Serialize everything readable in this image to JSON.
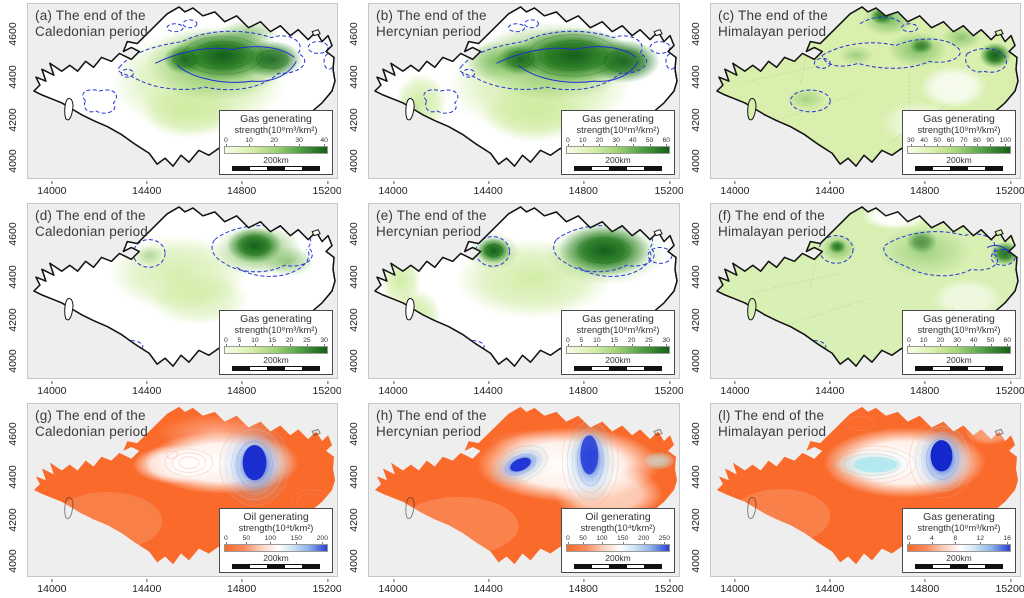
{
  "axes": {
    "x": [
      "14000",
      "14400",
      "14800",
      "15200"
    ],
    "y": [
      "4600",
      "4400",
      "4200",
      "4000"
    ]
  },
  "scale_label": "200km",
  "colors": {
    "plot_background": "#efeeee",
    "basin_fill_white": "#ffffff",
    "basin_fill_green": "#d9efae",
    "basin_fill_orange": "#f96a2b",
    "gas_scale_dark": "#145f18",
    "oil_scale_blue": "#2a3fd4",
    "contour_blue": "#2433d9",
    "outline_black": "#141414"
  },
  "panels": [
    {
      "label": "(a)",
      "title_line1": "(a) The end of the",
      "title_line2": "Caledonian period",
      "legend_title": "Gas generating",
      "legend_unit": "strength(10⁸m³/km²)",
      "ticks": [
        "0",
        "10",
        "20",
        "30",
        "40"
      ],
      "colormap": "green"
    },
    {
      "label": "(b)",
      "title_line1": "(b) The end of the",
      "title_line2": "Hercynian period",
      "legend_title": "Gas generating",
      "legend_unit": "strength(10⁸m³/km²)",
      "ticks": [
        "0",
        "10",
        "20",
        "30",
        "40",
        "50",
        "60"
      ],
      "colormap": "green"
    },
    {
      "label": "(c)",
      "title_line1": "(c) The end of the",
      "title_line2": "Himalayan period",
      "legend_title": "Gas generating",
      "legend_unit": "strength(10⁸m³/km²)",
      "ticks": [
        "30",
        "40",
        "50",
        "60",
        "70",
        "80",
        "90",
        "100"
      ],
      "colormap": "green"
    },
    {
      "label": "(d)",
      "title_line1": "(d) The end of the",
      "title_line2": "Caledonian period",
      "legend_title": "Gas generating",
      "legend_unit": "strength(10⁸m³/km²)",
      "ticks": [
        "0",
        "5",
        "10",
        "15",
        "20",
        "25",
        "30"
      ],
      "colormap": "green"
    },
    {
      "label": "(e)",
      "title_line1": "(e) The end of the",
      "title_line2": "Hercynian period",
      "legend_title": "Gas generating",
      "legend_unit": "strength(10⁸m³/km²)",
      "ticks": [
        "0",
        "5",
        "10",
        "15",
        "20",
        "25",
        "30"
      ],
      "colormap": "green"
    },
    {
      "label": "(f)",
      "title_line1": "(f) The end of the",
      "title_line2": "Himalayan period",
      "legend_title": "Gas generating",
      "legend_unit": "strength(10⁸m³/km²)",
      "ticks": [
        "0",
        "10",
        "20",
        "30",
        "40",
        "50",
        "60"
      ],
      "colormap": "green"
    },
    {
      "label": "(g)",
      "title_line1": "(g) The end of the",
      "title_line2": "Caledonian period",
      "legend_title": "Oil generating",
      "legend_unit": "strength(10⁴t/km²)",
      "ticks": [
        "0",
        "50",
        "100",
        "150",
        "200"
      ],
      "colormap": "diverging"
    },
    {
      "label": "(h)",
      "title_line1": "(h) The end of the",
      "title_line2": "Hercynian period",
      "legend_title": "Oil generating",
      "legend_unit": "strength(10⁴t/km²)",
      "ticks": [
        "0",
        "50",
        "100",
        "150",
        "200",
        "250"
      ],
      "colormap": "diverging"
    },
    {
      "label": "(l)",
      "title_line1": "(l) The end of the",
      "title_line2": "Himalayan period",
      "legend_title": "Gas generating",
      "legend_unit": "strength(10⁸m³/km²)",
      "ticks": [
        "0",
        "4",
        "8",
        "12",
        "16"
      ],
      "colormap": "diverging"
    }
  ]
}
